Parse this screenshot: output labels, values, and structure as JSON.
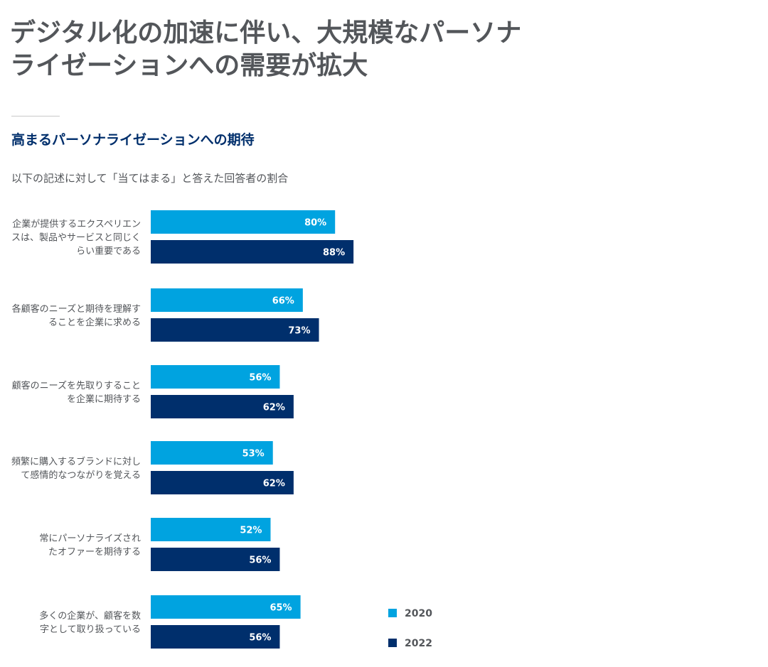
{
  "title": "デジタル化の加速に伴い、大規模なパーソナライゼーションへの需要が拡大",
  "colors": {
    "s2020": "#00a3e0",
    "s2022": "#002f6c",
    "text": "#53565a"
  },
  "chart_data": {
    "type": "bar",
    "orientation": "horizontal",
    "title": "高まるパーソナライゼーションへの期待",
    "subtitle": "以下の記述に対して「当てはまる」と答えた回答者の割合",
    "value_format": "percent",
    "categories": [
      [
        "企業が提供するエクスペリエン",
        "スは、製品やサービスと同じく",
        "らい重要である"
      ],
      [
        "各顧客のニーズと期待を理解す",
        "ることを企業に求める"
      ],
      [
        "顧客のニーズを先取りすること",
        "を企業に期待する"
      ],
      [
        "頻繁に購入するブランドに対し",
        "て感情的なつながりを覚える"
      ],
      [
        "常にパーソナライズされ",
        "たオファーを期待する"
      ],
      [
        "多くの企業が、顧客を数",
        "字として取り扱っている"
      ]
    ],
    "series": [
      {
        "name": "2020",
        "values": [
          80,
          66,
          56,
          53,
          52,
          65
        ]
      },
      {
        "name": "2022",
        "values": [
          88,
          73,
          62,
          62,
          56,
          56
        ]
      }
    ],
    "legend_position": "bottom-right"
  }
}
